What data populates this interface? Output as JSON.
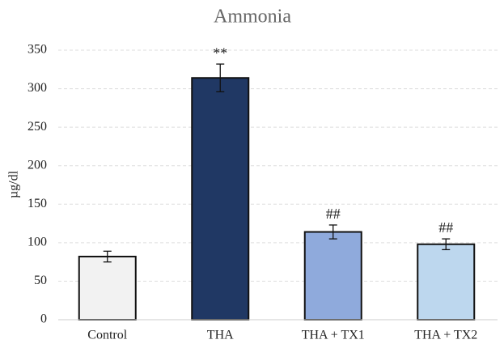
{
  "chart_data": {
    "type": "bar",
    "title": "Ammonia",
    "ylabel": "µg/dl",
    "categories": [
      "Control",
      "THA",
      "THA + TX1",
      "THA + TX2"
    ],
    "values": [
      82,
      314,
      114,
      98
    ],
    "errors": [
      7,
      18,
      9,
      7
    ],
    "annotations": [
      null,
      "**",
      "##",
      "##"
    ],
    "colors": [
      "#f2f2f2",
      "#203864",
      "#8faadc",
      "#bdd7ee"
    ],
    "ylim": [
      0,
      350
    ],
    "yticks": [
      0,
      50,
      100,
      150,
      200,
      250,
      300,
      350
    ],
    "grid": true
  }
}
